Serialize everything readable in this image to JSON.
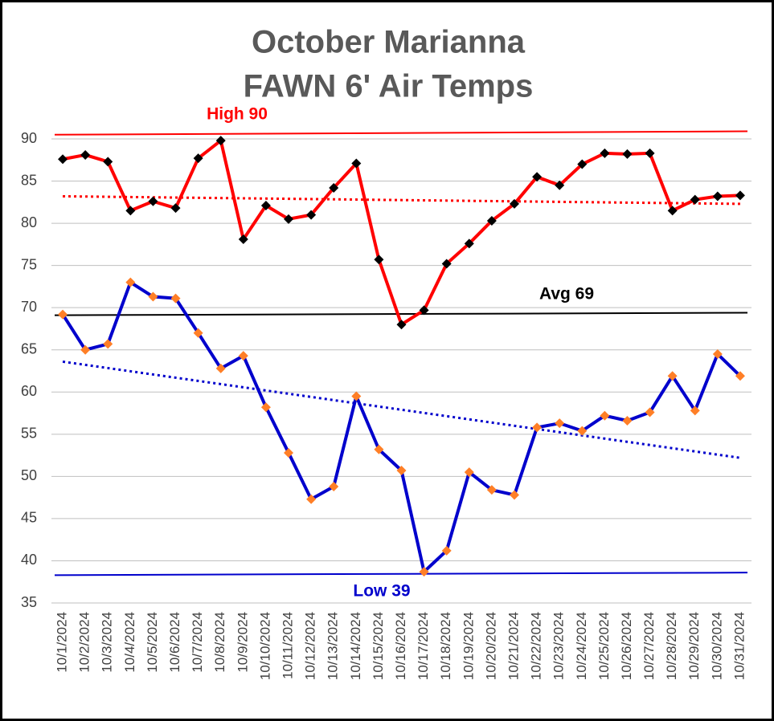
{
  "chart_data": {
    "type": "line",
    "title": [
      "October Marianna",
      "FAWN 6' Air Temps"
    ],
    "categories": [
      "10/1/2024",
      "10/2/2024",
      "10/3/2024",
      "10/4/2024",
      "10/5/2024",
      "10/6/2024",
      "10/7/2024",
      "10/8/2024",
      "10/9/2024",
      "10/10/2024",
      "10/11/2024",
      "10/12/2024",
      "10/13/2024",
      "10/14/2024",
      "10/15/2024",
      "10/16/2024",
      "10/17/2024",
      "10/18/2024",
      "10/19/2024",
      "10/20/2024",
      "10/21/2024",
      "10/22/2024",
      "10/23/2024",
      "10/24/2024",
      "10/25/2024",
      "10/26/2024",
      "10/27/2024",
      "10/28/2024",
      "10/29/2024",
      "10/30/2024",
      "10/31/2024"
    ],
    "series": [
      {
        "color": "#ff0000",
        "marker_color": "#000000",
        "values": [
          87.6,
          88.1,
          87.3,
          81.5,
          82.6,
          81.8,
          87.7,
          89.8,
          78.1,
          82.1,
          80.5,
          81.0,
          84.2,
          87.1,
          75.7,
          68.0,
          69.7,
          75.2,
          77.6,
          80.3,
          82.3,
          85.5,
          84.5,
          87.0,
          88.3,
          88.2,
          88.3,
          81.5,
          82.8,
          83.2,
          83.3
        ]
      },
      {
        "color": "#0000cc",
        "marker_color": "#ff7f27",
        "values": [
          69.2,
          65.0,
          65.7,
          73.0,
          71.3,
          71.1,
          67.0,
          62.8,
          64.3,
          58.2,
          52.8,
          47.3,
          48.8,
          59.5,
          53.2,
          50.7,
          38.7,
          41.2,
          50.5,
          48.4,
          47.8,
          55.8,
          56.3,
          55.4,
          57.2,
          56.6,
          57.6,
          61.9,
          57.8,
          64.5,
          61.9
        ]
      }
    ],
    "reference_lines": [
      {
        "label": "High 90",
        "color": "#ff0000",
        "start": 90.5,
        "end": 90.9
      },
      {
        "label": "Avg 69",
        "color": "#000000",
        "start": 69.1,
        "end": 69.4
      },
      {
        "label": "Low 39",
        "color": "#0000cc",
        "start": 38.3,
        "end": 38.6
      }
    ],
    "trendlines": [
      {
        "color": "#ff0000",
        "start": 83.2,
        "end": 82.3
      },
      {
        "color": "#0000cc",
        "start": 63.6,
        "end": 52.2
      }
    ],
    "ylim": [
      35,
      90
    ],
    "yticks": [
      35,
      40,
      45,
      50,
      55,
      60,
      65,
      70,
      75,
      80,
      85,
      90
    ],
    "grid": true
  }
}
